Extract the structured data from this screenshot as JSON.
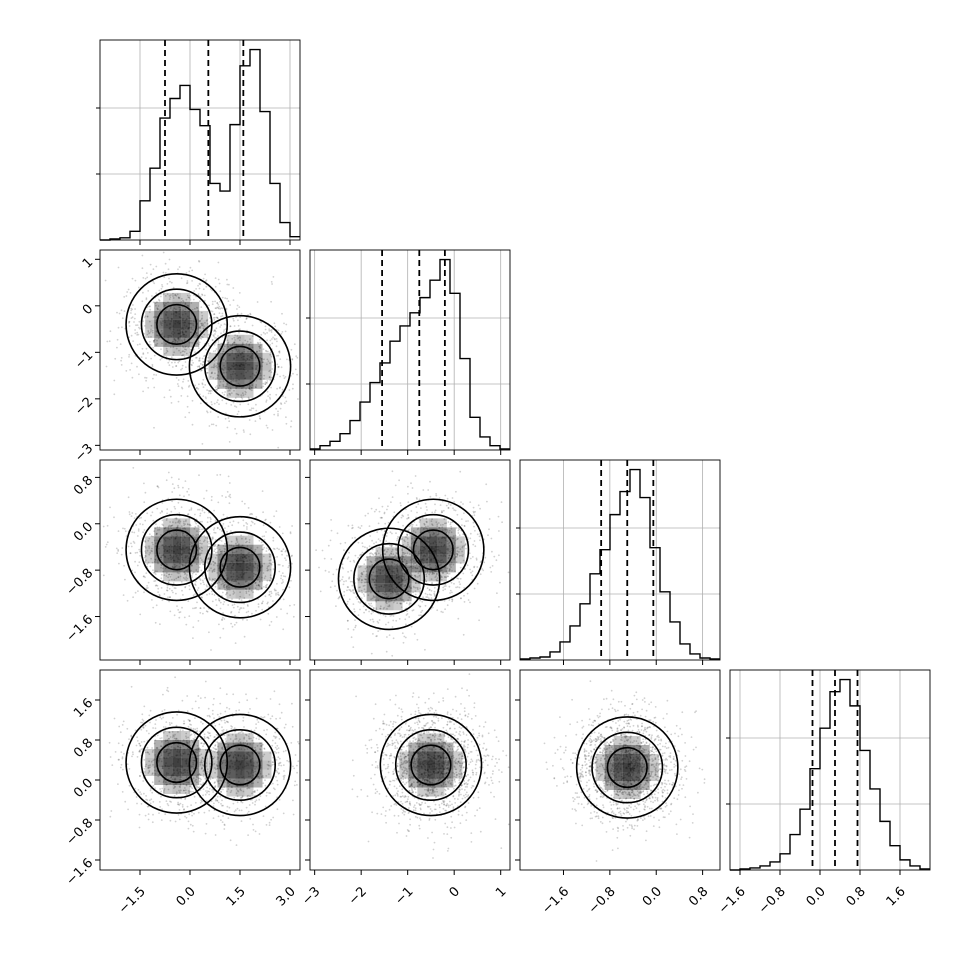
{
  "chart_data": {
    "type": "corner",
    "title": "",
    "xlabel": "",
    "ylabel": "",
    "variables": [
      {
        "range": [
          -2.7,
          3.3
        ],
        "ticks": [
          -1.5,
          0.0,
          1.5,
          3.0
        ],
        "tick_labels": [
          "−1.5",
          "0.0",
          "1.5",
          "3.0"
        ],
        "quantiles": [
          -0.75,
          0.55,
          1.6
        ]
      },
      {
        "range": [
          -3.1,
          1.2
        ],
        "ticks": [
          -3,
          -2,
          -1,
          0,
          1
        ],
        "tick_labels": [
          "−3",
          "−2",
          "−1",
          "0",
          "1"
        ],
        "quantiles": [
          -1.55,
          -0.75,
          -0.2
        ]
      },
      {
        "range": [
          -2.35,
          1.1
        ],
        "ticks": [
          -1.6,
          -0.8,
          0.0,
          0.8
        ],
        "tick_labels": [
          "−1.6",
          "−0.8",
          "0.0",
          "0.8"
        ],
        "quantiles": [
          -0.95,
          -0.5,
          -0.05
        ]
      },
      {
        "range": [
          -1.8,
          2.2
        ],
        "ticks": [
          -1.6,
          -0.8,
          0.0,
          0.8,
          1.6
        ],
        "tick_labels": [
          "−1.6",
          "−0.8",
          "0.0",
          "0.8",
          "1.6"
        ],
        "quantiles": [
          -0.15,
          0.3,
          0.75
        ]
      }
    ],
    "histograms": [
      {
        "bins": [
          -2.7,
          -2.4,
          -2.1,
          -1.8,
          -1.5,
          -1.2,
          -0.9,
          -0.6,
          -0.3,
          0.0,
          0.3,
          0.6,
          0.9,
          1.2,
          1.5,
          1.8,
          2.1,
          2.4,
          2.7,
          3.0,
          3.3
        ],
        "counts": [
          0,
          1,
          2,
          8,
          36,
          66,
          112,
          130,
          142,
          120,
          105,
          52,
          45,
          106,
          160,
          175,
          118,
          52,
          16,
          3
        ]
      },
      {
        "bins": [
          -3.1,
          -2.885,
          -2.67,
          -2.455,
          -2.24,
          -2.025,
          -1.81,
          -1.595,
          -1.38,
          -1.165,
          -0.95,
          -0.735,
          -0.52,
          -0.305,
          -0.09,
          0.125,
          0.34,
          0.555,
          0.77,
          0.985,
          1.2
        ],
        "counts": [
          1,
          4,
          8,
          15,
          27,
          44,
          62,
          80,
          100,
          114,
          126,
          140,
          156,
          175,
          144,
          84,
          30,
          12,
          4,
          1
        ]
      },
      {
        "bins": [
          -2.35,
          -2.1775,
          -2.005,
          -1.8325,
          -1.66,
          -1.4875,
          -1.315,
          -1.1425,
          -0.97,
          -0.7975,
          -0.625,
          -0.4525,
          -0.28,
          -0.1075,
          0.065,
          0.2375,
          0.41,
          0.5825,
          0.755,
          0.9275,
          1.1
        ],
        "counts": [
          1,
          2,
          3,
          8,
          18,
          34,
          56,
          86,
          110,
          145,
          168,
          190,
          162,
          112,
          68,
          38,
          16,
          6,
          2,
          1
        ]
      },
      {
        "bins": [
          -1.8,
          -1.6,
          -1.4,
          -1.2,
          -1.0,
          -0.8,
          -0.6,
          -0.4,
          -0.2,
          0.0,
          0.2,
          0.4,
          0.6,
          0.8,
          1.0,
          1.2,
          1.4,
          1.6,
          1.8,
          2.0,
          2.2
        ],
        "counts": [
          0,
          1,
          2,
          4,
          8,
          16,
          35,
          60,
          100,
          140,
          176,
          188,
          162,
          118,
          80,
          48,
          24,
          10,
          4,
          1
        ]
      }
    ],
    "scatter_peaks": [
      {
        "pair": [
          0,
          1
        ],
        "peaks": [
          [
            -0.4,
            -0.4
          ],
          [
            1.5,
            -1.3
          ]
        ]
      },
      {
        "pair": [
          0,
          2
        ],
        "peaks": [
          [
            -0.4,
            -0.45
          ],
          [
            1.5,
            -0.75
          ]
        ]
      },
      {
        "pair": [
          1,
          2
        ],
        "peaks": [
          [
            -0.45,
            -0.45
          ],
          [
            -1.4,
            -0.95
          ]
        ]
      },
      {
        "pair": [
          0,
          3
        ],
        "peaks": [
          [
            -0.4,
            0.35
          ],
          [
            1.5,
            0.3
          ]
        ]
      },
      {
        "pair": [
          1,
          3
        ],
        "peaks": [
          [
            -0.5,
            0.3
          ]
        ]
      },
      {
        "pair": [
          2,
          3
        ],
        "peaks": [
          [
            -0.5,
            0.25
          ]
        ]
      }
    ]
  }
}
